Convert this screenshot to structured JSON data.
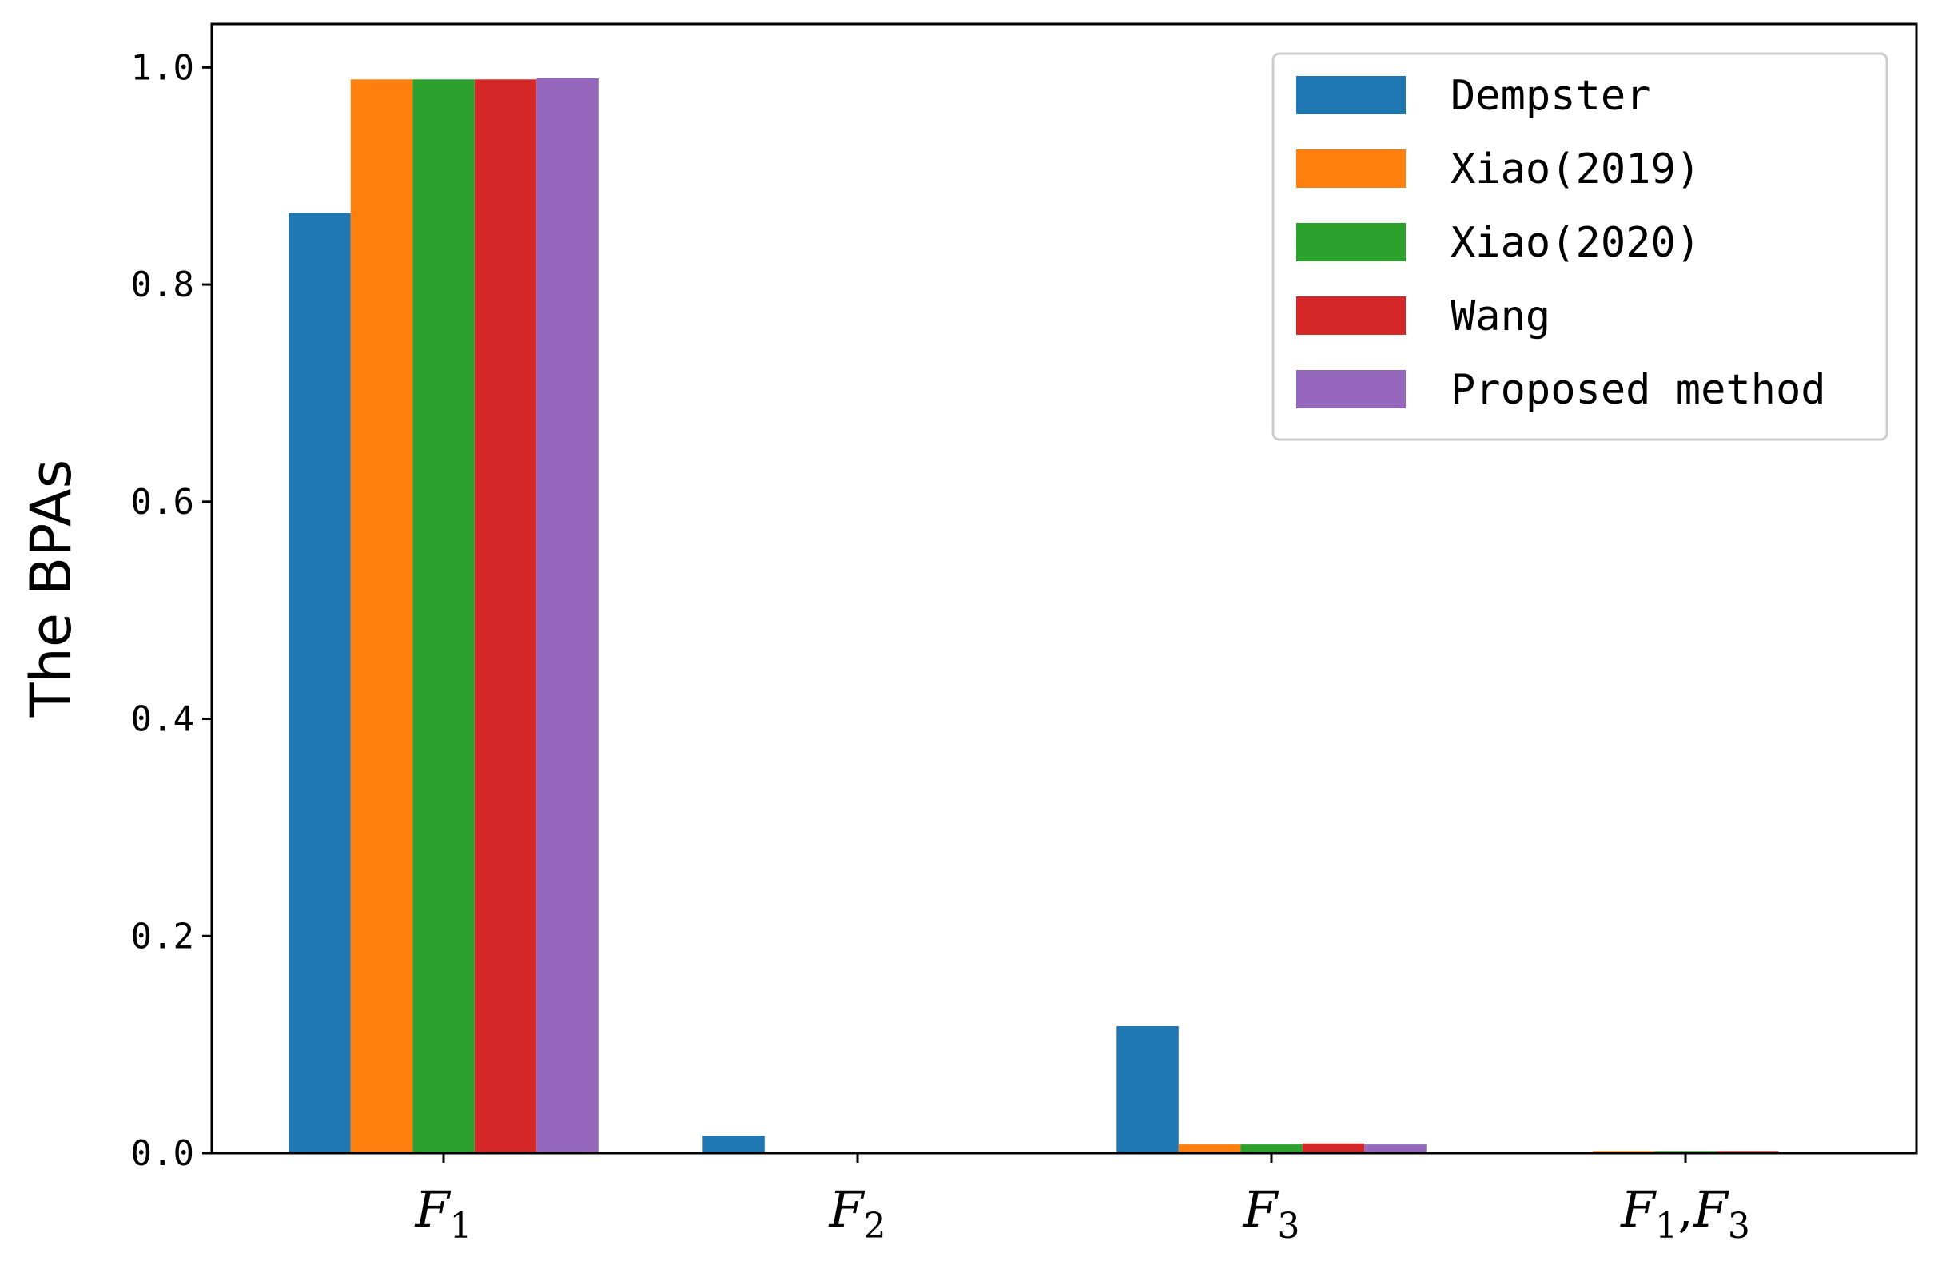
{
  "chart_data": {
    "type": "bar",
    "ylabel": "The BPAs",
    "xlabel": "",
    "ylim": [
      0,
      1.04
    ],
    "yticks": [
      "0.0",
      "0.2",
      "0.4",
      "0.6",
      "0.8",
      "1.0"
    ],
    "categories": [
      {
        "base": "F",
        "sub": "1"
      },
      {
        "base": "F",
        "sub": "2"
      },
      {
        "base": "F",
        "sub": "3"
      },
      {
        "base": "F",
        "sub": "1",
        "base2": "F",
        "sub2": "3"
      }
    ],
    "category_text": [
      "F1",
      "F2",
      "F3",
      "F1,F3"
    ],
    "series": [
      {
        "name": "Dempster",
        "color": "#1f77b4",
        "values": [
          0.866,
          0.016,
          0.117,
          0.0005
        ]
      },
      {
        "name": "Xiao(2019)",
        "color": "#ff7f0e",
        "values": [
          0.989,
          0.0001,
          0.008,
          0.002
        ]
      },
      {
        "name": "Xiao(2020)",
        "color": "#2ca02c",
        "values": [
          0.989,
          0.0001,
          0.008,
          0.002
        ]
      },
      {
        "name": "Wang",
        "color": "#d62728",
        "values": [
          0.989,
          0.0001,
          0.009,
          0.002
        ]
      },
      {
        "name": "Proposed method",
        "color": "#9467bd",
        "values": [
          0.99,
          0.0001,
          0.008,
          0.001
        ]
      }
    ],
    "grid": false,
    "legend_position": "top-right"
  }
}
